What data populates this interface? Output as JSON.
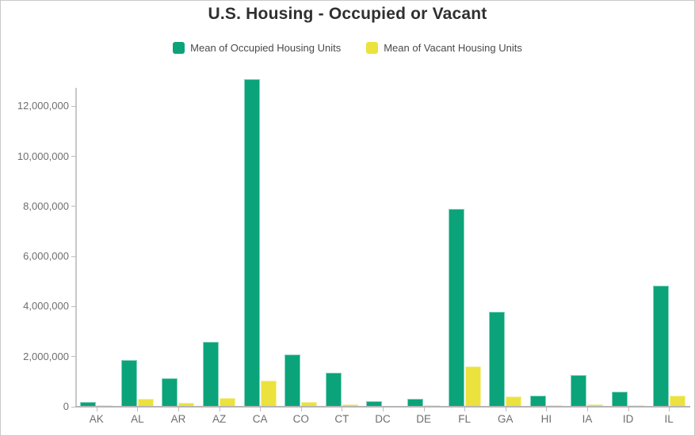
{
  "chart": {
    "title": "U.S. Housing - Occupied or Vacant"
  },
  "chart_data": {
    "type": "bar",
    "title": "U.S. Housing - Occupied or Vacant",
    "categories": [
      "AK",
      "AL",
      "AR",
      "AZ",
      "CA",
      "CO",
      "CT",
      "DC",
      "DE",
      "FL",
      "GA",
      "HI",
      "IA",
      "ID",
      "IL"
    ],
    "series": [
      {
        "name": "Mean of Occupied Housing Units",
        "color": "#0BA47A",
        "values": [
          200000,
          1850000,
          1150000,
          2600000,
          13100000,
          2100000,
          1350000,
          230000,
          330000,
          7900000,
          3800000,
          430000,
          1250000,
          600000,
          4850000
        ]
      },
      {
        "name": "Mean of Vacant Housing Units",
        "color": "#ECE23E",
        "values": [
          50000,
          320000,
          150000,
          350000,
          1050000,
          180000,
          80000,
          30000,
          50000,
          1600000,
          420000,
          60000,
          100000,
          60000,
          440000
        ]
      }
    ],
    "xlabel": "",
    "ylabel": "",
    "ylim": [
      0,
      13150000
    ],
    "yticks": [
      0,
      2000000,
      4000000,
      6000000,
      8000000,
      10000000,
      12000000
    ],
    "ytick_labels": [
      "0",
      "2,000,000",
      "4,000,000",
      "6,000,000",
      "8,000,000",
      "10,000,000",
      "12,000,000"
    ],
    "grid": false,
    "legend_position": "top",
    "colors": {
      "title_text": "#303030",
      "axis_text": "#6e6e6e",
      "legend_text": "#4a4a4a",
      "axis_line": "#b5b5b5"
    }
  }
}
